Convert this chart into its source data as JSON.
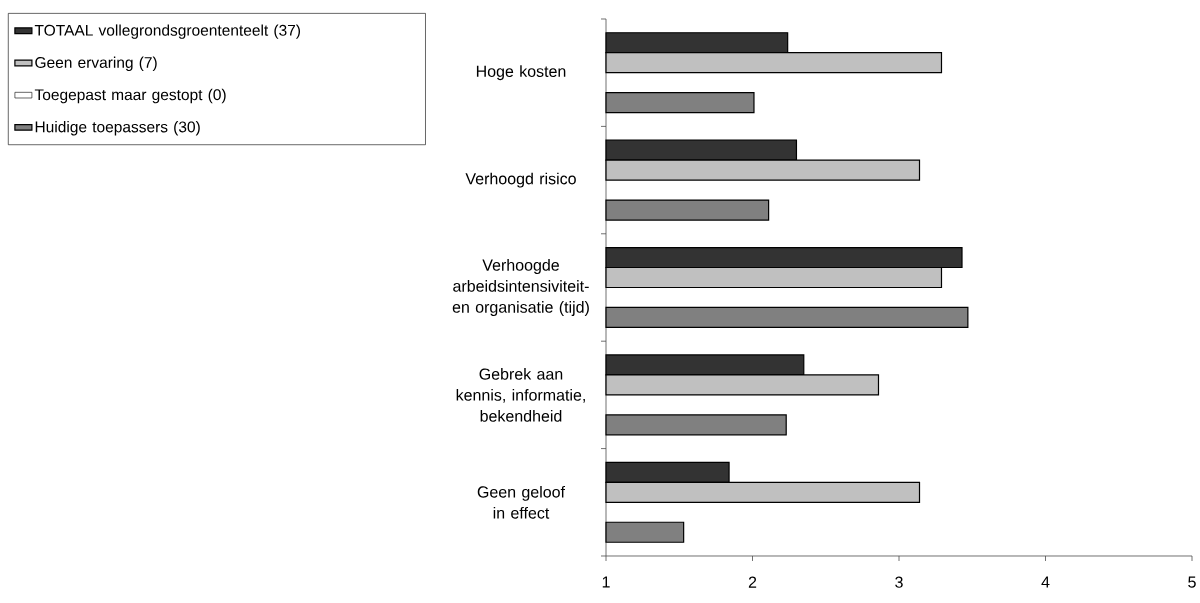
{
  "chart_data": {
    "type": "bar",
    "orientation": "horizontal",
    "categories": [
      "Hoge kosten",
      "Verhoogd risico",
      "Verhoogde arbeidsintensiviteit- en organisatie (tijd)",
      "Gebrek aan kennis, informatie, bekendheid",
      "Geen geloof in effect"
    ],
    "series": [
      {
        "name": "TOTAAL vollegrondsgroententeelt (37)",
        "color": "#333333",
        "values": [
          2.24,
          2.3,
          3.43,
          2.35,
          1.84
        ]
      },
      {
        "name": "Geen ervaring (7)",
        "color": "#c0c0c0",
        "values": [
          3.29,
          3.14,
          3.29,
          2.86,
          3.14
        ]
      },
      {
        "name": "Toegepast maar gestopt (0)",
        "color": "#ffffff",
        "values": [
          null,
          null,
          null,
          null,
          null
        ]
      },
      {
        "name": "Huidige toepassers (30)",
        "color": "#808080",
        "values": [
          2.01,
          2.11,
          3.47,
          2.23,
          1.53
        ]
      }
    ],
    "xlim": [
      1,
      5
    ],
    "xticks": [
      1,
      2,
      3,
      4,
      5
    ],
    "legend": "top left"
  }
}
